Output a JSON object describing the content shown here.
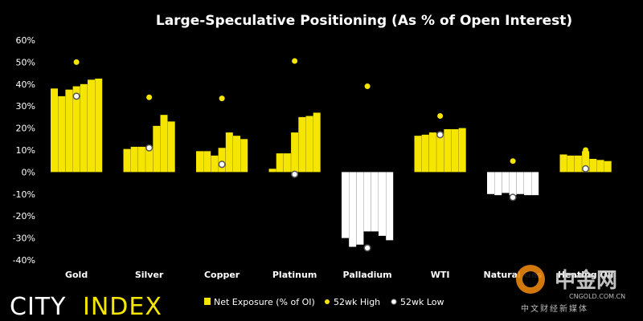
{
  "chart_data": {
    "type": "bar",
    "title": "Large-Speculative Positioning (As % of Open Interest)",
    "ylim": [
      -40,
      60
    ],
    "yticks": [
      "60%",
      "50%",
      "40%",
      "30%",
      "20%",
      "10%",
      "0%",
      "-10%",
      "-20%",
      "-30%",
      "-40%"
    ],
    "ytick_values": [
      60,
      50,
      40,
      30,
      20,
      10,
      0,
      -10,
      -20,
      -30,
      -40
    ],
    "categories": [
      "Gold",
      "Silver",
      "Copper",
      "Platinum",
      "Palladium",
      "WTI",
      "Natural Gas",
      "Heating Oil"
    ],
    "series": [
      {
        "name": "Net Exposure (% of OI)",
        "values": [
          [
            38,
            34.5,
            37.5,
            39,
            40,
            42,
            42.5
          ],
          [
            10.5,
            11.5,
            11.5,
            11,
            21,
            26,
            23
          ],
          [
            9.5,
            9.5,
            7.5,
            11,
            18,
            16.5,
            15
          ],
          [
            1.5,
            8.5,
            8.5,
            18,
            25,
            25.5,
            27
          ],
          [
            -30,
            -34,
            -33,
            -27,
            -27,
            -29,
            -31
          ],
          [
            16.5,
            17,
            18,
            17.5,
            19.5,
            19.5,
            20
          ],
          [
            -10,
            -10.5,
            -9.5,
            -10.5,
            -10,
            -10.5,
            -10.5
          ],
          [
            8,
            7.5,
            7.5,
            9.5,
            6,
            5.5,
            5
          ]
        ]
      },
      {
        "name": "52wk High",
        "values": [
          50,
          34,
          33.5,
          50.5,
          39,
          25.5,
          5,
          10
        ]
      },
      {
        "name": "52wk Low",
        "values": [
          34.5,
          11,
          3.5,
          -1,
          -34.5,
          17,
          -11.5,
          1.5
        ]
      }
    ],
    "legend_position": "bottom-center",
    "grid": false
  },
  "colors": {
    "positive_bar": "#f5e500",
    "negative_bar": "#ffffff",
    "high_marker": "#f5e500",
    "low_marker": "#ffffff",
    "background": "#000000"
  },
  "logo": {
    "part1": "CITY",
    "part2": "INDEX"
  },
  "watermark": {
    "main": "中金网",
    "site": "CNGOLD.COM.CN",
    "sub": "中文财经新媒体"
  }
}
